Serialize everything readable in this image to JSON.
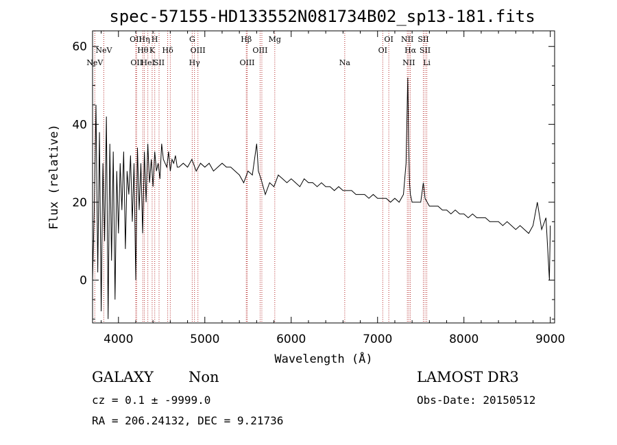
{
  "chart_data": {
    "type": "line",
    "title": "spec-57155-HD133552N081734B02_sp13-181.fits",
    "xlabel": "Wavelength (Å)",
    "ylabel": "Flux (relative)",
    "xlim": [
      3700,
      9050
    ],
    "ylim": [
      -11,
      64
    ],
    "xticks": [
      4000,
      5000,
      6000,
      7000,
      8000,
      9000
    ],
    "yticks": [
      0,
      20,
      40,
      60
    ],
    "series": [
      {
        "name": "flux",
        "x": [
          3700,
          3720,
          3740,
          3760,
          3780,
          3800,
          3820,
          3840,
          3860,
          3880,
          3900,
          3920,
          3940,
          3960,
          3980,
          4000,
          4020,
          4040,
          4060,
          4080,
          4100,
          4120,
          4140,
          4160,
          4180,
          4200,
          4220,
          4240,
          4260,
          4280,
          4300,
          4320,
          4340,
          4360,
          4380,
          4400,
          4420,
          4440,
          4460,
          4480,
          4500,
          4520,
          4540,
          4560,
          4580,
          4600,
          4620,
          4640,
          4660,
          4680,
          4700,
          4750,
          4800,
          4850,
          4900,
          4950,
          5000,
          5050,
          5100,
          5150,
          5200,
          5250,
          5300,
          5350,
          5400,
          5450,
          5500,
          5550,
          5600,
          5620,
          5650,
          5700,
          5750,
          5800,
          5850,
          5900,
          5950,
          6000,
          6050,
          6100,
          6150,
          6200,
          6250,
          6300,
          6350,
          6400,
          6450,
          6500,
          6550,
          6600,
          6650,
          6700,
          6750,
          6800,
          6850,
          6900,
          6950,
          7000,
          7050,
          7100,
          7150,
          7200,
          7250,
          7300,
          7330,
          7350,
          7360,
          7370,
          7380,
          7400,
          7450,
          7500,
          7530,
          7550,
          7600,
          7650,
          7700,
          7750,
          7800,
          7850,
          7900,
          7950,
          8000,
          8050,
          8100,
          8150,
          8200,
          8250,
          8300,
          8350,
          8400,
          8450,
          8500,
          8550,
          8600,
          8650,
          8700,
          8750,
          8800,
          8850,
          8900,
          8950,
          8990,
          9000
        ],
        "values": [
          0,
          18,
          45,
          2,
          38,
          -8,
          30,
          10,
          42,
          -10,
          35,
          5,
          33,
          -5,
          28,
          12,
          30,
          18,
          33,
          8,
          28,
          22,
          32,
          15,
          30,
          0,
          34,
          18,
          30,
          12,
          33,
          20,
          35,
          25,
          31,
          24,
          33,
          28,
          30,
          26,
          35,
          31,
          30,
          29,
          33,
          28,
          31,
          30,
          32,
          29,
          29,
          30,
          29,
          31,
          28,
          30,
          29,
          30,
          28,
          29,
          30,
          29,
          29,
          28,
          27,
          25,
          28,
          27,
          35,
          28,
          26,
          22,
          25,
          24,
          27,
          26,
          25,
          26,
          25,
          24,
          26,
          25,
          25,
          24,
          25,
          24,
          24,
          23,
          24,
          23,
          23,
          23,
          22,
          22,
          22,
          21,
          22,
          21,
          21,
          21,
          20,
          21,
          20,
          22,
          30,
          52,
          35,
          25,
          22,
          20,
          20,
          20,
          25,
          21,
          19,
          19,
          19,
          18,
          18,
          17,
          18,
          17,
          17,
          16,
          17,
          16,
          16,
          16,
          15,
          15,
          15,
          14,
          15,
          14,
          13,
          14,
          13,
          12,
          14,
          20,
          13,
          16,
          0,
          14
        ]
      }
    ],
    "emission_lines": [
      {
        "wl": 3726,
        "label": "NeV",
        "row": 3
      },
      {
        "wl": 3830,
        "label": "NeV",
        "row": 2
      },
      {
        "wl": 4200,
        "label": "OII",
        "row": 1
      },
      {
        "wl": 4210,
        "label": "OII",
        "row": 3
      },
      {
        "wl": 4282,
        "label": "Hθ",
        "row": 2
      },
      {
        "wl": 4300,
        "label": "Hη",
        "row": 1
      },
      {
        "wl": 4340,
        "label": "HeI",
        "row": 3
      },
      {
        "wl": 4390,
        "label": "K",
        "row": 2
      },
      {
        "wl": 4420,
        "label": "H",
        "row": 1
      },
      {
        "wl": 4470,
        "label": "SII",
        "row": 3
      },
      {
        "wl": 4570,
        "label": "Hδ",
        "row": 2
      },
      {
        "wl": 4600,
        "label": "",
        "row": 0
      },
      {
        "wl": 4854,
        "label": "G",
        "row": 1
      },
      {
        "wl": 4880,
        "label": "Hγ",
        "row": 3
      },
      {
        "wl": 4920,
        "label": "OIII",
        "row": 2
      },
      {
        "wl": 5480,
        "label": "Hβ",
        "row": 1
      },
      {
        "wl": 5490,
        "label": "OIII",
        "row": 3
      },
      {
        "wl": 5640,
        "label": "OIII",
        "row": 2
      },
      {
        "wl": 5660,
        "label": "",
        "row": 0
      },
      {
        "wl": 5810,
        "label": "Mg",
        "row": 1
      },
      {
        "wl": 6620,
        "label": "Na",
        "row": 3
      },
      {
        "wl": 7060,
        "label": "OI",
        "row": 2
      },
      {
        "wl": 7130,
        "label": "OI",
        "row": 1
      },
      {
        "wl": 7345,
        "label": "NII",
        "row": 1
      },
      {
        "wl": 7362,
        "label": "NII",
        "row": 3
      },
      {
        "wl": 7380,
        "label": "Hα",
        "row": 2
      },
      {
        "wl": 7530,
        "label": "SII",
        "row": 1
      },
      {
        "wl": 7550,
        "label": "SII",
        "row": 2
      },
      {
        "wl": 7570,
        "label": "Li",
        "row": 3
      }
    ]
  },
  "info": {
    "object_class": "GALAXY",
    "subclass": "Non",
    "survey": "LAMOST DR3",
    "redshift": "cz = 0.1 ± -9999.0",
    "obs_date": "Obs-Date: 20150512",
    "coords": "RA = 206.24132, DEC =   9.21736"
  },
  "colors": {
    "line_marker": "#b22222",
    "spectrum": "#000000"
  }
}
